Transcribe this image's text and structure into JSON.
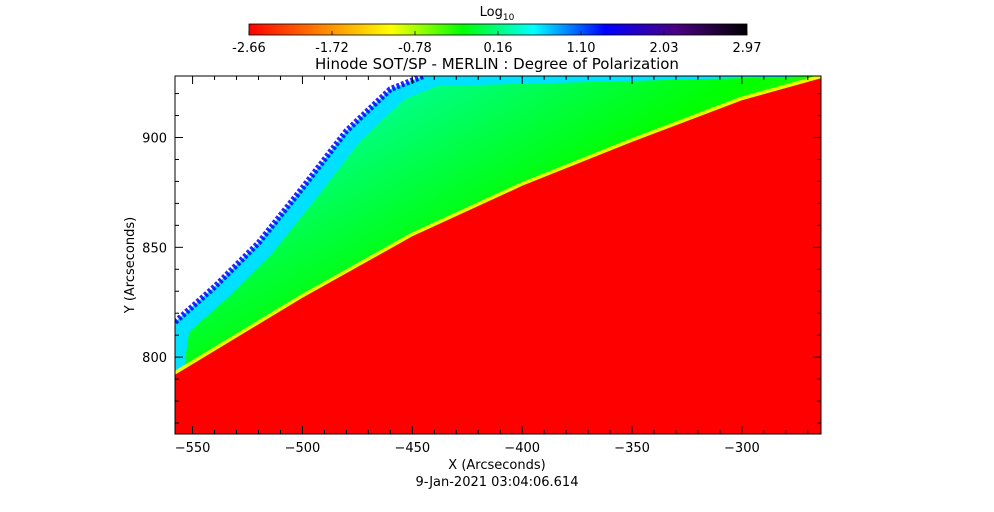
{
  "chart_data": {
    "type": "heatmap",
    "title": "Hinode SOT/SP - MERLIN : Degree of Polarization",
    "subtitle": "9-Jan-2021 03:04:06.614",
    "xlabel": "X (Arcseconds)",
    "ylabel": "Y (Arcseconds)",
    "xlim": [
      -558,
      -264
    ],
    "ylim": [
      765,
      928
    ],
    "xticks": [
      -550,
      -500,
      -450,
      -400,
      -350,
      -300
    ],
    "yticks": [
      800,
      850,
      900
    ],
    "colorbar": {
      "label": "Log",
      "label_subscript": "10",
      "min": -2.66,
      "max": 2.97,
      "ticks": [
        "-2.66",
        "-1.72",
        "-0.78",
        "0.16",
        "1.10",
        "2.03",
        "2.97"
      ],
      "colors": [
        "#ff0000",
        "#ff8000",
        "#ffff00",
        "#00ff00",
        "#00ffff",
        "#0000ff",
        "#4b0082",
        "#000000"
      ]
    },
    "limb": {
      "x": [
        -558,
        -500,
        -450,
        -400,
        -350,
        -300,
        -264
      ],
      "y": [
        792,
        827,
        855,
        878,
        898,
        917,
        927
      ]
    },
    "offdisk_edge": {
      "x": [
        -558,
        -540,
        -520,
        -500,
        -480,
        -460,
        -445
      ],
      "y": [
        816,
        832,
        852,
        877,
        903,
        922,
        928
      ]
    },
    "colors": {
      "disk": "#ff0000",
      "limb_band": "#ffff00",
      "corona": "#00ff00",
      "outer_corona": "#00ffff",
      "noise_edge": "#0000ff",
      "no_data": "#ffffff"
    }
  }
}
